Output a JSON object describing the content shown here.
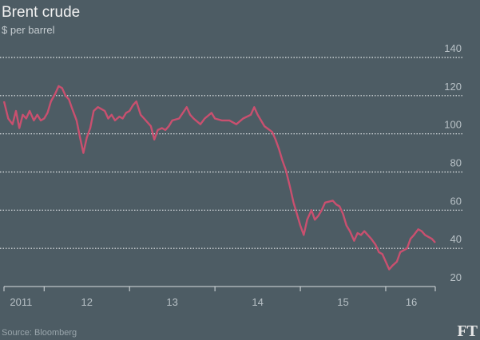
{
  "chart_data": {
    "type": "line",
    "title": "Brent crude",
    "subtitle": "$ per barrel",
    "source": "Source: Bloomberg",
    "logo": "FT",
    "xlim": [
      2011.53,
      2016.58
    ],
    "ylim": [
      20,
      140
    ],
    "yticks": [
      20,
      40,
      60,
      80,
      100,
      120,
      140
    ],
    "grid": true,
    "xticks": [
      {
        "value": 2011.73,
        "label": "2011"
      },
      {
        "value": 2012.5,
        "label": "12"
      },
      {
        "value": 2013.5,
        "label": "13"
      },
      {
        "value": 2014.5,
        "label": "14"
      },
      {
        "value": 2015.5,
        "label": "15"
      },
      {
        "value": 2016.3,
        "label": "16"
      }
    ],
    "year_boundaries": [
      2012,
      2013,
      2014,
      2015,
      2016
    ],
    "series": [
      {
        "name": "Brent crude",
        "color": "#c9506f",
        "x": [
          2011.53,
          2011.58,
          2011.63,
          2011.67,
          2011.71,
          2011.75,
          2011.79,
          2011.83,
          2011.88,
          2011.92,
          2011.96,
          2012.0,
          2012.04,
          2012.08,
          2012.13,
          2012.17,
          2012.21,
          2012.25,
          2012.29,
          2012.33,
          2012.38,
          2012.42,
          2012.46,
          2012.5,
          2012.54,
          2012.58,
          2012.63,
          2012.67,
          2012.71,
          2012.75,
          2012.79,
          2012.83,
          2012.88,
          2012.92,
          2012.96,
          2013.0,
          2013.04,
          2013.08,
          2013.13,
          2013.17,
          2013.25,
          2013.29,
          2013.33,
          2013.38,
          2013.42,
          2013.46,
          2013.5,
          2013.58,
          2013.67,
          2013.71,
          2013.75,
          2013.83,
          2013.88,
          2013.96,
          2014.0,
          2014.08,
          2014.17,
          2014.25,
          2014.33,
          2014.42,
          2014.46,
          2014.5,
          2014.58,
          2014.67,
          2014.71,
          2014.75,
          2014.79,
          2014.83,
          2014.88,
          2014.92,
          2014.96,
          2015.0,
          2015.04,
          2015.08,
          2015.13,
          2015.17,
          2015.21,
          2015.25,
          2015.29,
          2015.38,
          2015.42,
          2015.46,
          2015.5,
          2015.54,
          2015.58,
          2015.63,
          2015.67,
          2015.71,
          2015.75,
          2015.79,
          2015.83,
          2015.88,
          2015.92,
          2015.96,
          2016.0,
          2016.04,
          2016.08,
          2016.13,
          2016.17,
          2016.21,
          2016.25,
          2016.29,
          2016.33,
          2016.38,
          2016.42,
          2016.46,
          2016.5,
          2016.54,
          2016.58
        ],
        "values": [
          117,
          108,
          105,
          112,
          103,
          110,
          108,
          112,
          107,
          110,
          107,
          108,
          111,
          117,
          121,
          125,
          124,
          120,
          118,
          113,
          107,
          98,
          90,
          98,
          103,
          112,
          114,
          113,
          112,
          108,
          110,
          107,
          109,
          108,
          111,
          112,
          115,
          117,
          110,
          108,
          104,
          97,
          102,
          103,
          102,
          104,
          107,
          108,
          114,
          110,
          108,
          105,
          108,
          111,
          108,
          107,
          107,
          105,
          108,
          110,
          114,
          110,
          104,
          101,
          97,
          92,
          86,
          81,
          72,
          64,
          58,
          52,
          47,
          55,
          60,
          55,
          57,
          60,
          64,
          65,
          63,
          62,
          58,
          52,
          49,
          44,
          48,
          47,
          49,
          47,
          45,
          42,
          38,
          37,
          33,
          29,
          31,
          33,
          38,
          39,
          40,
          45,
          47,
          50,
          49,
          47,
          46,
          45,
          43
        ]
      }
    ]
  }
}
